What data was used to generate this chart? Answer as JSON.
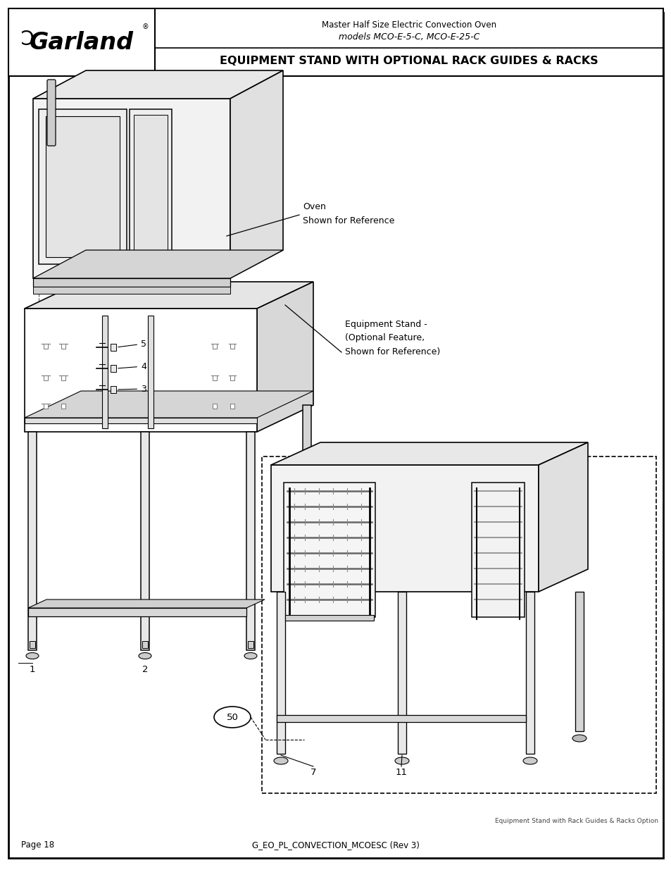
{
  "page_bg": "#ffffff",
  "border_color": "#000000",
  "title_line1": "Master Half Size Electric Convection Oven",
  "title_line2": "models MCO-E-5-C, MCO-E-25-C",
  "title_main": "EQUIPMENT STAND WITH OPTIONAL RACK GUIDES & RACKS",
  "footer_left": "Page 18",
  "footer_center": "G_EO_PL_CONVECTION_MCOESC (Rev 3)",
  "footer_right": "Equipment Stand with Rack Guides & Racks Option",
  "label_oven": "Oven\nShown for Reference",
  "label_stand": "Equipment Stand -\n(Optional Feature,\nShown for Reference)",
  "gray_face": "#f2f2f2",
  "gray_side": "#e0e0e0",
  "gray_top": "#e8e8e8",
  "gray_shelf": "#d8d8d8",
  "line_lw": 1.2
}
